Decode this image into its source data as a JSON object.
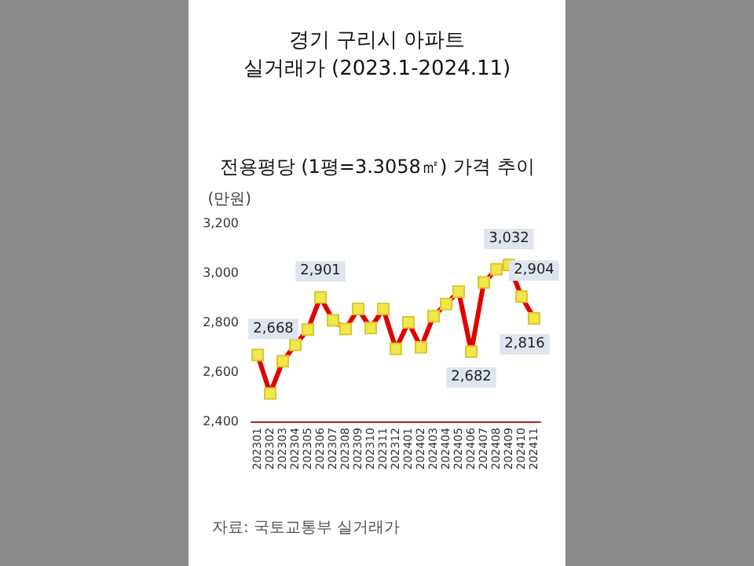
{
  "chart_data": {
    "type": "line",
    "title": "경기 구리시 아파트\n실거래가 (2023.1-2024.11)",
    "subtitle": "전용평당 (1평=3.3058㎡) 가격 추이",
    "ylabel": "(만원)",
    "annotations": [
      "자료: 국토교통부 실거래가"
    ],
    "categories": [
      "202301",
      "202302",
      "202303",
      "202304",
      "202305",
      "202306",
      "202307",
      "202308",
      "202309",
      "202310",
      "202311",
      "202312",
      "202401",
      "202402",
      "202403",
      "202404",
      "202405",
      "202406",
      "202407",
      "202408",
      "202409",
      "202410",
      "202411"
    ],
    "series": [
      {
        "color": "#e00000",
        "values": [
          2668,
          2513,
          2643,
          2709,
          2771,
          2901,
          2808,
          2773,
          2854,
          2777,
          2854,
          2693,
          2800,
          2699,
          2825,
          2874,
          2924,
          2682,
          2961,
          3014,
          3032,
          2904,
          2816
        ],
        "value_labels": [
          "2,668",
          null,
          null,
          null,
          null,
          "2,901",
          null,
          null,
          null,
          null,
          null,
          null,
          null,
          null,
          null,
          null,
          null,
          "2,682",
          null,
          null,
          "3,032",
          "2,904",
          "2,816"
        ]
      }
    ],
    "ylim": [
      2400,
      3200
    ],
    "yticks": [
      {
        "value": 2400,
        "label": "2,400"
      },
      {
        "value": 2600,
        "label": "2,600"
      },
      {
        "value": 2800,
        "label": "2,800"
      },
      {
        "value": 3000,
        "label": "3,000"
      },
      {
        "value": 3200,
        "label": "3,200"
      }
    ],
    "grid": false,
    "marker": "square",
    "line_style": "solid"
  }
}
